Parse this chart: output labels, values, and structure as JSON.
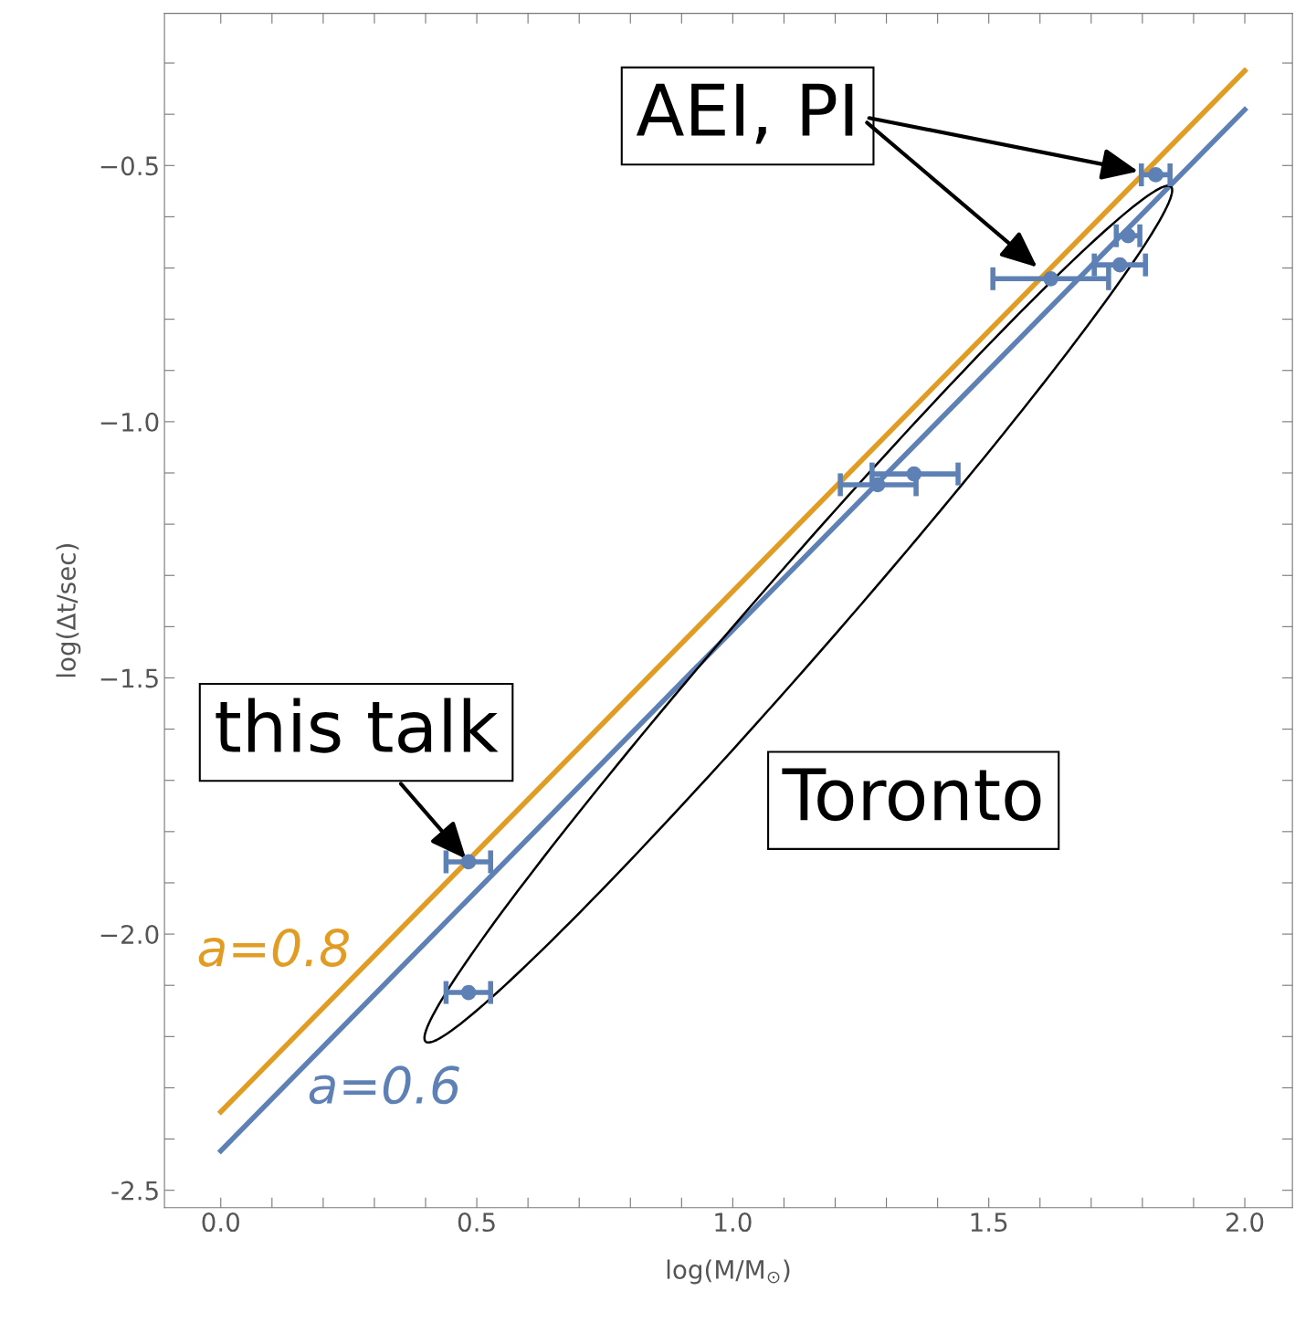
{
  "chart_data": {
    "type": "scatter",
    "xlabel": "log(M/M$_{⊙}$)",
    "ylabel": "log(Δt/sec)",
    "xlim": [
      -0.11,
      2.093
    ],
    "ylim": [
      -2.534,
      -0.203
    ],
    "xticks": [
      {
        "value": 0.1,
        "label": null
      },
      {
        "value": 0.2,
        "label": null
      },
      {
        "value": 0.3,
        "label": null
      },
      {
        "value": 0.4,
        "label": null
      },
      {
        "value": 0.5,
        "label": "0.5"
      },
      {
        "value": 0.6,
        "label": null
      },
      {
        "value": 0.7,
        "label": null
      },
      {
        "value": 0.8,
        "label": null
      },
      {
        "value": 0.9,
        "label": null
      },
      {
        "value": 1,
        "label": "1.0"
      },
      {
        "value": 1.1,
        "label": null
      },
      {
        "value": 1.2,
        "label": null
      },
      {
        "value": 1.3,
        "label": null
      },
      {
        "value": 1.4,
        "label": null
      },
      {
        "value": 1.5,
        "label": "1.5"
      },
      {
        "value": 1.6,
        "label": null
      },
      {
        "value": 1.7,
        "label": null
      },
      {
        "value": 1.8,
        "label": null
      },
      {
        "value": 1.9,
        "label": null
      },
      {
        "value": 2,
        "label": "2.0"
      },
      {
        "value": 0,
        "label": "0.0"
      }
    ],
    "yticks": [
      -2.5,
      {
        "value": -2.4,
        "label": null
      },
      {
        "value": -2.3,
        "label": null
      },
      {
        "value": -2.2,
        "label": null
      },
      {
        "value": -2.1,
        "label": null
      },
      {
        "value": -2.0,
        "label": "−2.0"
      },
      {
        "value": -1.9,
        "label": null
      },
      {
        "value": -1.8,
        "label": null
      },
      {
        "value": -1.7,
        "label": null
      },
      {
        "value": -1.6,
        "label": null
      },
      {
        "value": -1.5,
        "label": "−1.5"
      },
      {
        "value": -1.4,
        "label": null
      },
      {
        "value": -1.3,
        "label": null
      },
      {
        "value": -1.2,
        "label": null
      },
      {
        "value": -1.1,
        "label": null
      },
      {
        "value": -1.0,
        "label": "−1.0"
      },
      {
        "value": -0.9,
        "label": null
      },
      {
        "value": -0.8,
        "label": null
      },
      {
        "value": -0.7,
        "label": null
      },
      {
        "value": -0.6,
        "label": null
      },
      {
        "value": -0.5,
        "label": "−0.5"
      },
      {
        "value": -0.4,
        "label": null
      },
      {
        "value": -0.3,
        "label": null
      }
    ],
    "grid": false,
    "tick_labels": "xy",
    "series": [
      {
        "type": "line",
        "name": "a=0.8",
        "color": "#e19c24",
        "x": [
          0,
          2
        ],
        "values": [
          -2.347,
          -0.315
        ],
        "marker": "none"
      },
      {
        "type": "line",
        "name": "a=0.6",
        "color": "#5e81b5",
        "x": [
          0,
          2
        ],
        "values": [
          -2.423,
          -0.391
        ],
        "marker": "none"
      },
      {
        "marker": "circle",
        "color": "#5e81b5",
        "x": [
          1.826,
          1.621,
          0.484
        ],
        "values": [
          -0.518,
          -0.721,
          -1.859
        ],
        "xerrors": [
          0.028,
          0.113,
          [
            0.44,
            0.527
          ]
        ]
      },
      {
        "marker": "circle",
        "color": "#5e81b5",
        "x": [
          1.772,
          1.756,
          1.354,
          1.283,
          0.484
        ],
        "values": [
          -0.637,
          -0.694,
          -1.102,
          -1.123,
          -2.114
        ],
        "xerrors": [
          0.023,
          0.05,
          [
            1.272,
            1.44
          ],
          [
            1.21,
            1.358
          ],
          [
            0.44,
            0.527
          ]
        ]
      }
    ],
    "annotations": [
      "AEI, PI",
      {
        "text": "this talk",
        "x": 0.484,
        "y": -1.859
      },
      "Toronto"
    ]
  }
}
